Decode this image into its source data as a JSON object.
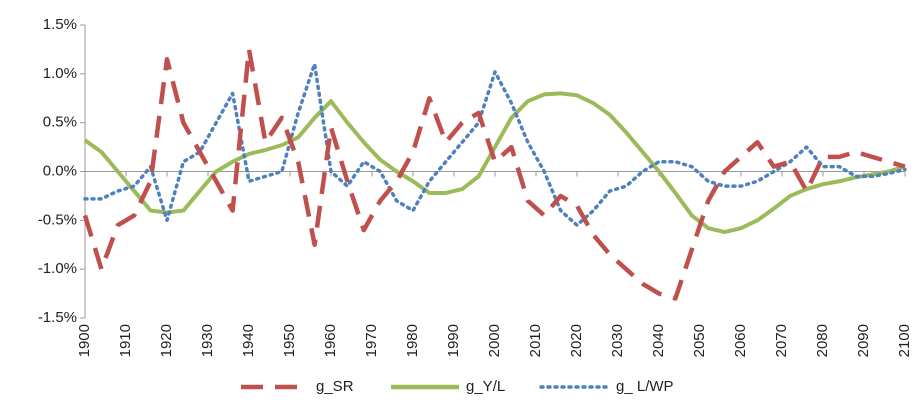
{
  "chart_data": {
    "type": "line",
    "x": [
      1900,
      1904,
      1908,
      1912,
      1916,
      1920,
      1924,
      1928,
      1932,
      1936,
      1940,
      1944,
      1948,
      1952,
      1956,
      1960,
      1964,
      1968,
      1972,
      1976,
      1980,
      1984,
      1988,
      1992,
      1996,
      2000,
      2004,
      2008,
      2012,
      2016,
      2020,
      2024,
      2028,
      2032,
      2036,
      2040,
      2044,
      2048,
      2052,
      2056,
      2060,
      2064,
      2068,
      2072,
      2076,
      2080,
      2084,
      2088,
      2092,
      2096,
      2100
    ],
    "series": [
      {
        "name": "g_SR",
        "color": "#c0504d",
        "dash": "dashed",
        "values": [
          -0.45,
          -1.0,
          -0.55,
          -0.45,
          -0.1,
          1.15,
          0.5,
          0.2,
          -0.1,
          -0.4,
          1.25,
          0.3,
          0.55,
          0.1,
          -0.75,
          0.45,
          -0.1,
          -0.6,
          -0.3,
          -0.1,
          0.2,
          0.75,
          0.3,
          0.5,
          0.6,
          0.1,
          0.25,
          -0.3,
          -0.45,
          -0.25,
          -0.35,
          -0.65,
          -0.85,
          -1.0,
          -1.15,
          -1.25,
          -1.3,
          -0.8,
          -0.3,
          0.0,
          0.15,
          0.3,
          0.05,
          0.1,
          -0.2,
          0.15,
          0.15,
          0.2,
          0.15,
          0.1,
          0.05
        ]
      },
      {
        "name": "g_Y/L",
        "color": "#9bbb59",
        "dash": "solid",
        "values": [
          0.32,
          0.2,
          0.0,
          -0.2,
          -0.4,
          -0.42,
          -0.4,
          -0.2,
          0.0,
          0.1,
          0.18,
          0.22,
          0.27,
          0.35,
          0.55,
          0.72,
          0.5,
          0.3,
          0.12,
          0.0,
          -0.1,
          -0.22,
          -0.22,
          -0.18,
          -0.05,
          0.25,
          0.55,
          0.72,
          0.79,
          0.8,
          0.78,
          0.7,
          0.58,
          0.4,
          0.2,
          0.0,
          -0.22,
          -0.45,
          -0.58,
          -0.62,
          -0.58,
          -0.5,
          -0.38,
          -0.25,
          -0.18,
          -0.13,
          -0.1,
          -0.06,
          -0.03,
          0.0,
          0.05
        ]
      },
      {
        "name": "g_ L/WP",
        "color": "#4f81bd",
        "dash": "dotted",
        "values": [
          -0.28,
          -0.28,
          -0.2,
          -0.15,
          0.05,
          -0.5,
          0.1,
          0.2,
          0.5,
          0.8,
          -0.1,
          -0.05,
          0.0,
          0.6,
          1.1,
          0.0,
          -0.15,
          0.1,
          0.0,
          -0.3,
          -0.4,
          -0.1,
          0.1,
          0.3,
          0.5,
          1.02,
          0.7,
          0.3,
          0.0,
          -0.4,
          -0.55,
          -0.4,
          -0.2,
          -0.15,
          0.0,
          0.1,
          0.1,
          0.05,
          -0.1,
          -0.15,
          -0.15,
          -0.1,
          0.0,
          0.1,
          0.25,
          0.05,
          0.05,
          -0.05,
          -0.05,
          -0.02,
          0.02
        ]
      }
    ],
    "xlim": [
      1900,
      2100
    ],
    "xticks": [
      1900,
      1910,
      1920,
      1930,
      1940,
      1950,
      1960,
      1970,
      1980,
      1990,
      2000,
      2010,
      2020,
      2030,
      2040,
      2050,
      2060,
      2070,
      2080,
      2090,
      2100
    ],
    "ylim": [
      -1.5,
      1.5
    ],
    "yticks": [
      {
        "value": -1.5,
        "label": "-1.5%"
      },
      {
        "value": -1.0,
        "label": "-1.0%"
      },
      {
        "value": -0.5,
        "label": "-0.5%"
      },
      {
        "value": 0.0,
        "label": "0.0%"
      },
      {
        "value": 0.5,
        "label": "0.5%"
      },
      {
        "value": 1.0,
        "label": "1.0%"
      },
      {
        "value": 1.5,
        "label": "1.5%"
      }
    ],
    "grid": false,
    "legend": "bottom"
  }
}
